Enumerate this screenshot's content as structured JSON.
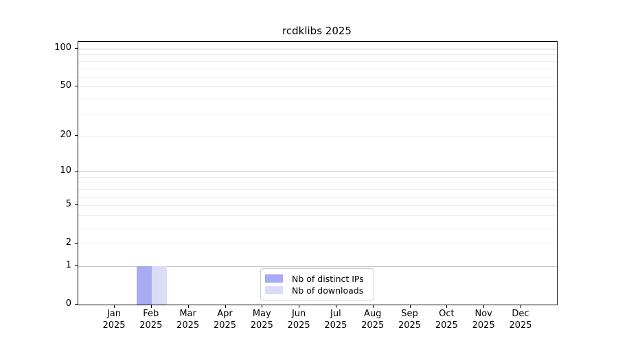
{
  "chart_data": {
    "type": "bar",
    "title": "rcdklibs 2025",
    "x_year_label": "2025",
    "categories": [
      "Jan",
      "Feb",
      "Mar",
      "Apr",
      "May",
      "Jun",
      "Jul",
      "Aug",
      "Sep",
      "Oct",
      "Nov",
      "Dec"
    ],
    "series": [
      {
        "name": "Nb of distinct IPs",
        "color": "#a8aaf3",
        "values": [
          0,
          1,
          0,
          0,
          0,
          0,
          0,
          0,
          0,
          0,
          0,
          0
        ]
      },
      {
        "name": "Nb of downloads",
        "color": "#dbddf8",
        "values": [
          0,
          1,
          0,
          0,
          0,
          0,
          0,
          0,
          0,
          0,
          0,
          0
        ]
      }
    ],
    "y_axis": {
      "scale": "log10(1+x)",
      "tick_values": [
        0,
        1,
        2,
        5,
        10,
        20,
        50,
        100
      ],
      "tick_labels": [
        "0",
        "1",
        "2",
        "5",
        "10",
        "20",
        "50",
        "100"
      ],
      "major_grid_values": [
        1,
        10,
        100
      ],
      "minor_grid_values": [
        2,
        3,
        4,
        5,
        6,
        7,
        8,
        9,
        20,
        30,
        40,
        50,
        60,
        70,
        80,
        90
      ],
      "top_label": 100
    },
    "legend": {
      "position": "inside-bottom-center",
      "entries": [
        "Nb of distinct IPs",
        "Nb of downloads"
      ]
    },
    "grid": true,
    "colors": {
      "background": "#ffffff",
      "spine": "#000000",
      "grid_major": "#c6c6c6",
      "grid_minor": "#ebebeb",
      "text": "#000000",
      "legend_border": "#cccccc"
    }
  }
}
